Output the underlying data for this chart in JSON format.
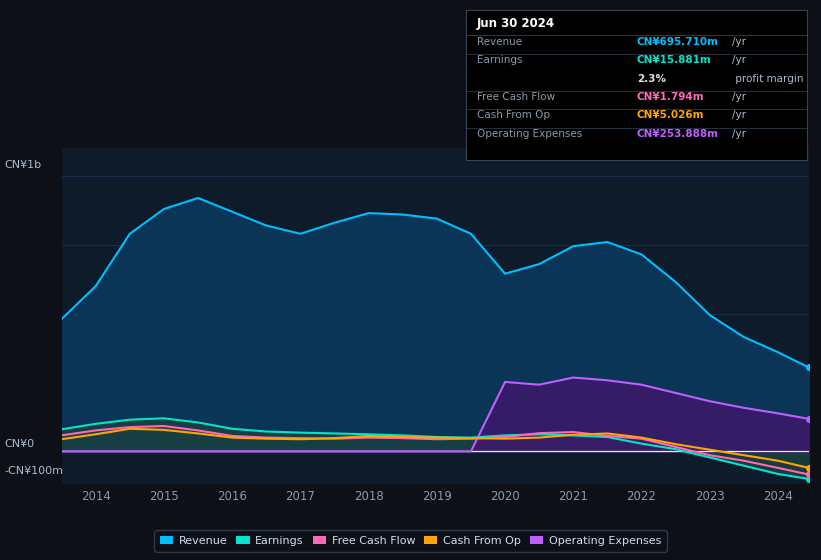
{
  "bg_color": "#0d1117",
  "plot_bg_color": "#0d1b2a",
  "grid_color": "#1e3050",
  "ylabel_top": "CN¥1b",
  "ylabel_zero": "CN¥0",
  "ylabel_neg": "-CN¥100m",
  "years": [
    2013.5,
    2014.0,
    2014.5,
    2015.0,
    2015.5,
    2016.0,
    2016.5,
    2017.0,
    2017.5,
    2018.0,
    2018.5,
    2019.0,
    2019.5,
    2020.0,
    2020.5,
    2021.0,
    2021.5,
    2022.0,
    2022.5,
    2023.0,
    2023.5,
    2024.0,
    2024.45
  ],
  "revenue": [
    480,
    600,
    790,
    880,
    920,
    870,
    820,
    790,
    830,
    865,
    860,
    845,
    790,
    645,
    680,
    745,
    760,
    715,
    615,
    495,
    415,
    360,
    305
  ],
  "earnings": [
    80,
    100,
    115,
    120,
    105,
    82,
    72,
    68,
    65,
    62,
    58,
    52,
    50,
    58,
    62,
    58,
    52,
    28,
    8,
    -22,
    -52,
    -82,
    -100
  ],
  "free_cash_flow": [
    58,
    76,
    88,
    92,
    76,
    56,
    50,
    48,
    46,
    50,
    48,
    44,
    46,
    52,
    66,
    70,
    56,
    46,
    16,
    -14,
    -34,
    -60,
    -84
  ],
  "cash_from_op": [
    44,
    62,
    82,
    78,
    65,
    50,
    46,
    44,
    48,
    56,
    52,
    50,
    48,
    46,
    50,
    60,
    65,
    50,
    26,
    6,
    -14,
    -34,
    -60
  ],
  "operating_expenses": [
    0,
    0,
    0,
    0,
    0,
    0,
    0,
    0,
    0,
    0,
    0,
    0,
    0,
    252,
    242,
    268,
    258,
    242,
    212,
    182,
    158,
    138,
    118
  ],
  "revenue_color": "#00bfff",
  "earnings_color": "#00e5cc",
  "fcf_color": "#ff69b4",
  "cashop_color": "#ffa500",
  "opex_color": "#bf5fff",
  "revenue_fill": "#0a3556",
  "earnings_fill": "#1a4040",
  "opex_fill": "#3a1a6a",
  "xticks": [
    2014,
    2015,
    2016,
    2017,
    2018,
    2019,
    2020,
    2021,
    2022,
    2023,
    2024
  ],
  "ylim": [
    -120,
    1100
  ],
  "info_box": {
    "date": "Jun 30 2024",
    "rows": [
      {
        "label": "Revenue",
        "value": "CN¥695.710m",
        "unit": "/yr",
        "color": "#00bfff"
      },
      {
        "label": "Earnings",
        "value": "CN¥15.881m",
        "unit": "/yr",
        "color": "#00e5cc"
      },
      {
        "label": "",
        "value": "2.3%",
        "unit": " profit margin",
        "color": "#e0e0e0"
      },
      {
        "label": "Free Cash Flow",
        "value": "CN¥1.794m",
        "unit": "/yr",
        "color": "#ff69b4"
      },
      {
        "label": "Cash From Op",
        "value": "CN¥5.026m",
        "unit": "/yr",
        "color": "#ffa500"
      },
      {
        "label": "Operating Expenses",
        "value": "CN¥253.888m",
        "unit": "/yr",
        "color": "#bf5fff"
      }
    ]
  },
  "legend": [
    {
      "label": "Revenue",
      "color": "#00bfff"
    },
    {
      "label": "Earnings",
      "color": "#00e5cc"
    },
    {
      "label": "Free Cash Flow",
      "color": "#ff69b4"
    },
    {
      "label": "Cash From Op",
      "color": "#ffa500"
    },
    {
      "label": "Operating Expenses",
      "color": "#bf5fff"
    }
  ]
}
